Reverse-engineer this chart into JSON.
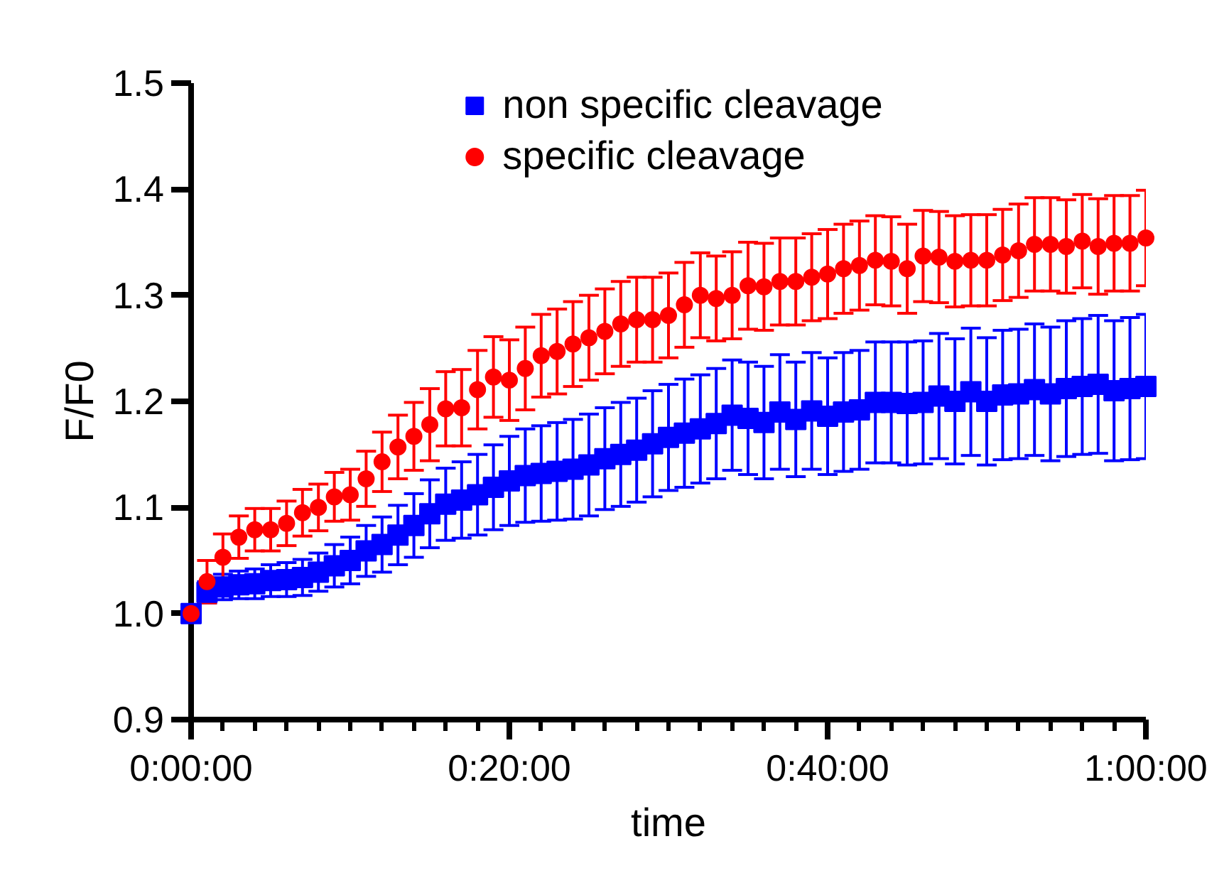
{
  "chart_data": {
    "type": "scatter",
    "xlabel": "time",
    "ylabel": "F/F0",
    "x": [
      0,
      1,
      2,
      3,
      4,
      5,
      6,
      7,
      8,
      9,
      10,
      11,
      12,
      13,
      14,
      15,
      16,
      17,
      18,
      19,
      20,
      21,
      22,
      23,
      24,
      25,
      26,
      27,
      28,
      29,
      30,
      31,
      32,
      33,
      34,
      35,
      36,
      37,
      38,
      39,
      40,
      41,
      42,
      43,
      44,
      45,
      46,
      47,
      48,
      49,
      50,
      51,
      52,
      53,
      54,
      55,
      56,
      57,
      58,
      59,
      60
    ],
    "series": [
      {
        "name": "non specific cleavage",
        "color": "#0000ff",
        "marker": "square",
        "values": [
          1.0,
          1.02,
          1.025,
          1.027,
          1.028,
          1.031,
          1.032,
          1.034,
          1.039,
          1.045,
          1.05,
          1.059,
          1.065,
          1.074,
          1.083,
          1.094,
          1.103,
          1.107,
          1.112,
          1.119,
          1.125,
          1.13,
          1.132,
          1.134,
          1.136,
          1.14,
          1.146,
          1.15,
          1.154,
          1.16,
          1.166,
          1.17,
          1.174,
          1.179,
          1.187,
          1.184,
          1.18,
          1.19,
          1.183,
          1.191,
          1.186,
          1.19,
          1.192,
          1.199,
          1.199,
          1.198,
          1.199,
          1.205,
          1.2,
          1.209,
          1.2,
          1.206,
          1.207,
          1.211,
          1.207,
          1.212,
          1.214,
          1.216,
          1.21,
          1.212,
          1.214
        ],
        "errors": [
          0.0,
          0.01,
          0.012,
          0.013,
          0.014,
          0.015,
          0.016,
          0.017,
          0.018,
          0.02,
          0.022,
          0.024,
          0.026,
          0.028,
          0.03,
          0.032,
          0.034,
          0.036,
          0.038,
          0.04,
          0.042,
          0.044,
          0.045,
          0.046,
          0.047,
          0.048,
          0.048,
          0.049,
          0.049,
          0.05,
          0.05,
          0.051,
          0.051,
          0.052,
          0.052,
          0.053,
          0.053,
          0.054,
          0.054,
          0.055,
          0.055,
          0.056,
          0.056,
          0.057,
          0.057,
          0.058,
          0.058,
          0.059,
          0.059,
          0.06,
          0.06,
          0.061,
          0.061,
          0.062,
          0.063,
          0.064,
          0.064,
          0.065,
          0.066,
          0.067,
          0.068
        ]
      },
      {
        "name": "specific cleavage",
        "color": "#ff0000",
        "marker": "circle",
        "values": [
          1.0,
          1.03,
          1.053,
          1.072,
          1.079,
          1.079,
          1.085,
          1.095,
          1.1,
          1.11,
          1.112,
          1.127,
          1.143,
          1.157,
          1.167,
          1.178,
          1.193,
          1.194,
          1.211,
          1.223,
          1.22,
          1.231,
          1.243,
          1.247,
          1.254,
          1.26,
          1.266,
          1.273,
          1.277,
          1.277,
          1.281,
          1.291,
          1.3,
          1.297,
          1.3,
          1.309,
          1.308,
          1.313,
          1.313,
          1.317,
          1.32,
          1.325,
          1.328,
          1.333,
          1.332,
          1.325,
          1.337,
          1.336,
          1.332,
          1.333,
          1.333,
          1.338,
          1.342,
          1.348,
          1.348,
          1.346,
          1.351,
          1.346,
          1.349,
          1.349,
          1.354
        ],
        "errors": [
          0.0,
          0.02,
          0.022,
          0.02,
          0.02,
          0.02,
          0.021,
          0.022,
          0.022,
          0.023,
          0.024,
          0.026,
          0.028,
          0.03,
          0.032,
          0.034,
          0.035,
          0.036,
          0.037,
          0.038,
          0.038,
          0.039,
          0.039,
          0.04,
          0.04,
          0.04,
          0.04,
          0.04,
          0.04,
          0.04,
          0.04,
          0.04,
          0.04,
          0.04,
          0.041,
          0.041,
          0.041,
          0.041,
          0.041,
          0.041,
          0.042,
          0.042,
          0.042,
          0.042,
          0.042,
          0.042,
          0.043,
          0.043,
          0.043,
          0.043,
          0.043,
          0.043,
          0.044,
          0.044,
          0.044,
          0.044,
          0.044,
          0.045,
          0.045,
          0.045,
          0.045
        ]
      }
    ],
    "xlim": [
      0,
      60
    ],
    "xticks": [
      {
        "value": 0,
        "label": "0:00:00"
      },
      {
        "value": 2,
        "label": null
      },
      {
        "value": 4,
        "label": null
      },
      {
        "value": 6,
        "label": null
      },
      {
        "value": 8,
        "label": null
      },
      {
        "value": 10,
        "label": null
      },
      {
        "value": 12,
        "label": null
      },
      {
        "value": 14,
        "label": null
      },
      {
        "value": 16,
        "label": null
      },
      {
        "value": 18,
        "label": null
      },
      {
        "value": 20,
        "label": "0:20:00"
      },
      {
        "value": 22,
        "label": null
      },
      {
        "value": 24,
        "label": null
      },
      {
        "value": 26,
        "label": null
      },
      {
        "value": 28,
        "label": null
      },
      {
        "value": 30,
        "label": null
      },
      {
        "value": 32,
        "label": null
      },
      {
        "value": 34,
        "label": null
      },
      {
        "value": 36,
        "label": null
      },
      {
        "value": 38,
        "label": null
      },
      {
        "value": 40,
        "label": "0:40:00"
      },
      {
        "value": 42,
        "label": null
      },
      {
        "value": 44,
        "label": null
      },
      {
        "value": 46,
        "label": null
      },
      {
        "value": 48,
        "label": null
      },
      {
        "value": 50,
        "label": null
      },
      {
        "value": 52,
        "label": null
      },
      {
        "value": 54,
        "label": null
      },
      {
        "value": 56,
        "label": null
      },
      {
        "value": 58,
        "label": null
      },
      {
        "value": 60,
        "label": "1:00:00"
      }
    ],
    "ylim": [
      0.9,
      1.5
    ],
    "yticks": [
      {
        "value": 0.9,
        "label": "0.9"
      },
      {
        "value": 1.0,
        "label": "1.0"
      },
      {
        "value": 1.1,
        "label": "1.1"
      },
      {
        "value": 1.2,
        "label": "1.2"
      },
      {
        "value": 1.3,
        "label": "1.3"
      },
      {
        "value": 1.4,
        "label": "1.4"
      },
      {
        "value": 1.5,
        "label": "1.5"
      }
    ],
    "grid": false,
    "legend": "top"
  }
}
